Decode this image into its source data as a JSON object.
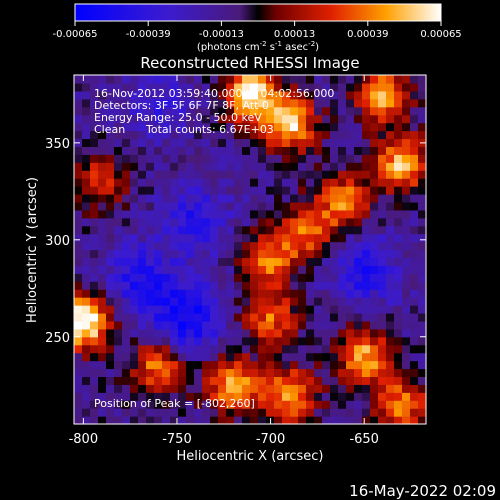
{
  "chart_data": {
    "type": "heatmap",
    "title": "Reconstructed RHESSI Image",
    "xlabel": "Heliocentric X (arcsec)",
    "ylabel": "Heliocentric Y (arcsec)",
    "xlim": [
      -805,
      -617
    ],
    "ylim": [
      205,
      385
    ],
    "xticks": [
      -800,
      -750,
      -700,
      -650
    ],
    "yticks": [
      250,
      300,
      350
    ],
    "colorbar": {
      "ticks": [
        "-0.00065",
        "-0.00039",
        "-0.00013",
        "0.00013",
        "0.00039",
        "0.00065"
      ],
      "unit_line": "(photons cm",
      "unit_exp1": "-2",
      "unit_mid": " s",
      "unit_exp2": "-1",
      "unit_mid2": " asec",
      "unit_exp3": "-2",
      "unit_end": ")",
      "range": [
        -0.00065,
        0.00065
      ]
    },
    "annotations": {
      "time": "16-Nov-2012 03:59:40.000 to 04:02:56.000",
      "detectors": "Detectors: 3F 5F 6F 7F 8F, Att 0",
      "energy": "Energy Range: 25.0 - 50.0 keV",
      "clean": "Clean",
      "counts": "Total counts: 6.67E+03",
      "peak": "Position of Peak = [-802,260]"
    },
    "peak": [
      -802,
      260
    ],
    "bright_sources": [
      {
        "x": -800,
        "y": 258,
        "level": 1.0
      },
      {
        "x": -710,
        "y": 375,
        "level": 0.9
      },
      {
        "x": -690,
        "y": 360,
        "level": 0.8
      },
      {
        "x": -640,
        "y": 375,
        "level": 0.7
      },
      {
        "x": -630,
        "y": 340,
        "level": 0.75
      },
      {
        "x": -660,
        "y": 320,
        "level": 0.6
      },
      {
        "x": -760,
        "y": 235,
        "level": 0.6
      },
      {
        "x": -720,
        "y": 225,
        "level": 0.75
      },
      {
        "x": -690,
        "y": 220,
        "level": 0.7
      },
      {
        "x": -650,
        "y": 240,
        "level": 0.7
      },
      {
        "x": -630,
        "y": 215,
        "level": 0.6
      },
      {
        "x": -700,
        "y": 290,
        "level": 0.6
      },
      {
        "x": -700,
        "y": 260,
        "level": 0.55
      },
      {
        "x": -790,
        "y": 330,
        "level": 0.45
      },
      {
        "x": -680,
        "y": 305,
        "level": 0.55
      }
    ],
    "dark_sources": [
      {
        "x": -745,
        "y": 260,
        "level": 0.8
      },
      {
        "x": -770,
        "y": 280,
        "level": 0.6
      },
      {
        "x": -740,
        "y": 310,
        "level": 0.55
      },
      {
        "x": -650,
        "y": 285,
        "level": 0.6
      },
      {
        "x": -760,
        "y": 370,
        "level": 0.4
      }
    ]
  },
  "footer": {
    "timestamp": "16-May-2022 02:09"
  }
}
